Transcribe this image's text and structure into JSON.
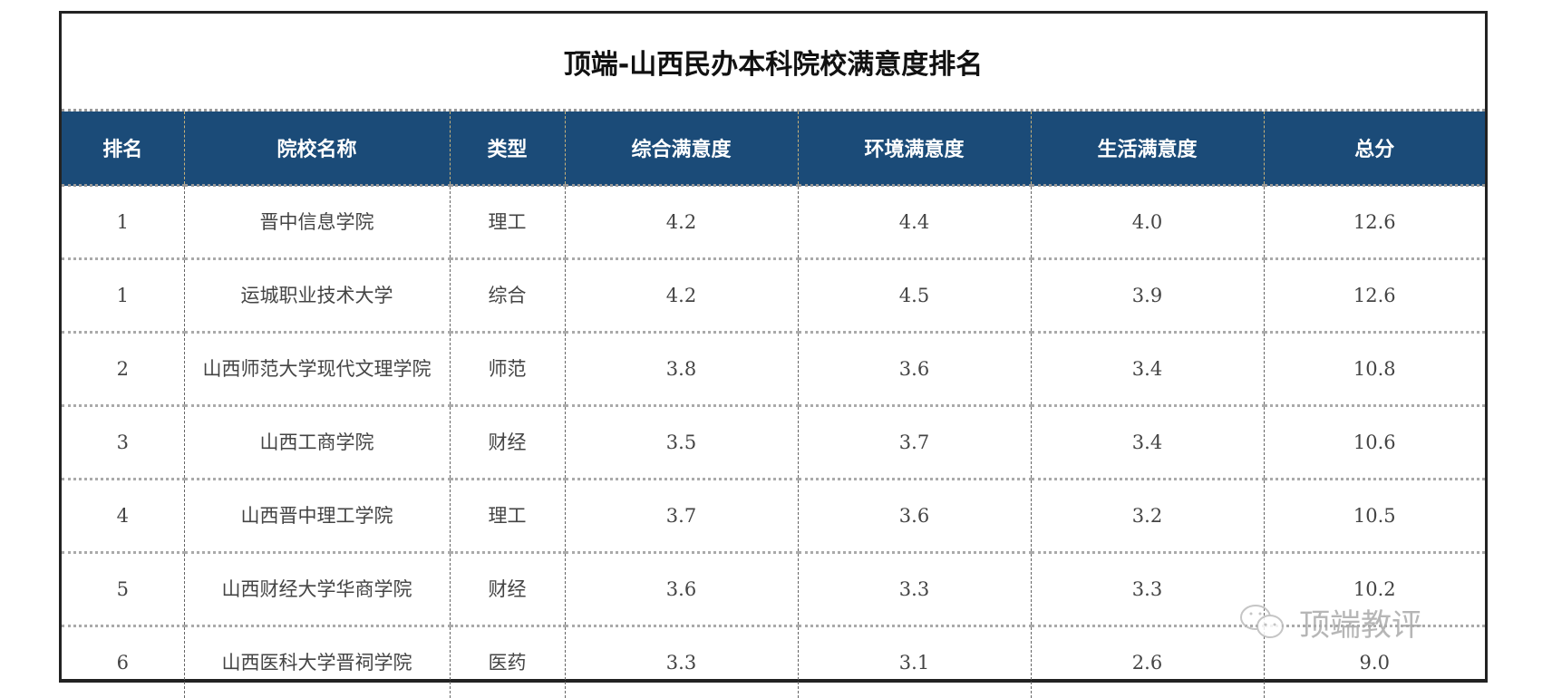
{
  "title": "顶端-山西民办本科院校满意度排名",
  "columns": [
    "排名",
    "院校名称",
    "类型",
    "综合满意度",
    "环境满意度",
    "生活满意度",
    "总分"
  ],
  "rows": [
    [
      "1",
      "晋中信息学院",
      "理工",
      "4.2",
      "4.4",
      "4.0",
      "12.6"
    ],
    [
      "1",
      "运城职业技术大学",
      "综合",
      "4.2",
      "4.5",
      "3.9",
      "12.6"
    ],
    [
      "2",
      "山西师范大学现代文理学院",
      "师范",
      "3.8",
      "3.6",
      "3.4",
      "10.8"
    ],
    [
      "3",
      "山西工商学院",
      "财经",
      "3.5",
      "3.7",
      "3.4",
      "10.6"
    ],
    [
      "4",
      "山西晋中理工学院",
      "理工",
      "3.7",
      "3.6",
      "3.2",
      "10.5"
    ],
    [
      "5",
      "山西财经大学华商学院",
      "财经",
      "3.6",
      "3.3",
      "3.3",
      "10.2"
    ],
    [
      "6",
      "山西医科大学晋祠学院",
      "医药",
      "3.3",
      "3.1",
      "2.6",
      "9.0"
    ]
  ],
  "watermark": {
    "text": "顶端教评",
    "icon": "wechat-icon"
  },
  "colors": {
    "header_bg": "#1b4b78",
    "header_text": "#ffffff"
  }
}
